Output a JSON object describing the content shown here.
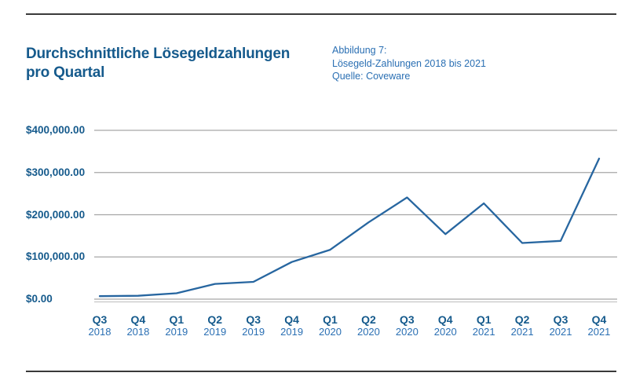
{
  "page": {
    "title_line1": "Durchschnittliche Lösegeldzahlungen",
    "title_line2": "pro Quartal",
    "caption": {
      "line1": "Abbildung 7:",
      "line2": "Lösegeld-Zahlungen 2018 bis 2021",
      "line3": "Quelle: Coveware"
    }
  },
  "colors": {
    "title_blue": "#155a8c",
    "caption_blue": "#2a6fb3",
    "line_blue": "#2766a0",
    "grid_gray": "#a6a6a6",
    "grid_gray_light": "#c6c6c6",
    "divider_dark": "#3a3a3a"
  },
  "chart_data": {
    "type": "line",
    "title": "Durchschnittliche Lösegeldzahlungen pro Quartal",
    "subtitle": "Abbildung 7: Lösegeld-Zahlungen 2018 bis 2021, Quelle: Coveware",
    "categories": [
      {
        "quarter": "Q3",
        "year": "2018"
      },
      {
        "quarter": "Q4",
        "year": "2018"
      },
      {
        "quarter": "Q1",
        "year": "2019"
      },
      {
        "quarter": "Q2",
        "year": "2019"
      },
      {
        "quarter": "Q3",
        "year": "2019"
      },
      {
        "quarter": "Q4",
        "year": "2019"
      },
      {
        "quarter": "Q1",
        "year": "2020"
      },
      {
        "quarter": "Q2",
        "year": "2020"
      },
      {
        "quarter": "Q3",
        "year": "2020"
      },
      {
        "quarter": "Q4",
        "year": "2020"
      },
      {
        "quarter": "Q1",
        "year": "2021"
      },
      {
        "quarter": "Q2",
        "year": "2021"
      },
      {
        "quarter": "Q3",
        "year": "2021"
      },
      {
        "quarter": "Q4",
        "year": "2021"
      }
    ],
    "values": [
      7000,
      8000,
      14000,
      36000,
      41000,
      88000,
      117000,
      182000,
      241000,
      154000,
      227000,
      133000,
      138000,
      333000
    ],
    "y_ticks": [
      {
        "value": 400000,
        "label": "$400,000.00"
      },
      {
        "value": 300000,
        "label": "$300,000.00"
      },
      {
        "value": 200000,
        "label": "$200,000.00"
      },
      {
        "value": 100000,
        "label": "$100,000.00"
      },
      {
        "value": 0,
        "label": "$0.00"
      }
    ],
    "ylim": [
      0,
      400000
    ],
    "xlabel": "",
    "ylabel": "",
    "grid": true,
    "legend": "none"
  }
}
